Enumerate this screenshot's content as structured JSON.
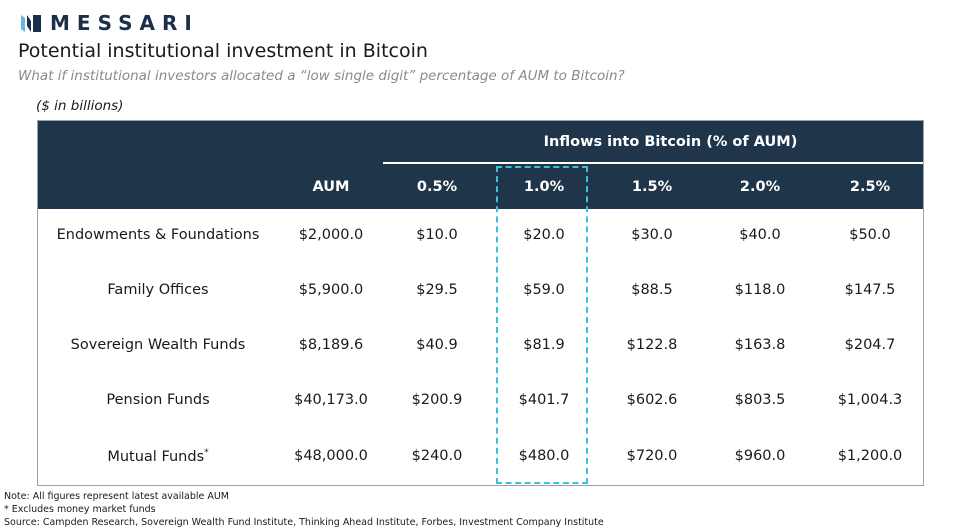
{
  "brand": {
    "name": "MESSARI",
    "logo_icon": "messari-logo-icon"
  },
  "title": "Potential institutional investment in Bitcoin",
  "subtitle": "What if institutional investors allocated a “low single digit” percentage of AUM to Bitcoin?",
  "units": "($ in billions)",
  "colors": {
    "header_bg": "#1f3549",
    "highlight": "#3ec0dc",
    "brand": "#1b2e4a"
  },
  "notes": [
    "Note: All figures represent latest available AUM",
    "* Excludes money market funds",
    "Source: Campden Research, Sovereign Wealth Fund Institute, Thinking Ahead Institute, Forbes, Investment Company Institute"
  ],
  "chart_data": {
    "type": "table",
    "group_header": "Inflows into Bitcoin (% of AUM)",
    "columns": [
      "AUM",
      "0.5%",
      "1.0%",
      "1.5%",
      "2.0%",
      "2.5%"
    ],
    "highlighted_column": "1.0%",
    "rows": [
      {
        "label": "Endowments & Foundations",
        "footnote": "",
        "values": [
          "$2,000.0",
          "$10.0",
          "$20.0",
          "$30.0",
          "$40.0",
          "$50.0"
        ]
      },
      {
        "label": "Family Offices",
        "footnote": "",
        "values": [
          "$5,900.0",
          "$29.5",
          "$59.0",
          "$88.5",
          "$118.0",
          "$147.5"
        ]
      },
      {
        "label": "Sovereign Wealth Funds",
        "footnote": "",
        "values": [
          "$8,189.6",
          "$40.9",
          "$81.9",
          "$122.8",
          "$163.8",
          "$204.7"
        ]
      },
      {
        "label": "Pension Funds",
        "footnote": "",
        "values": [
          "$40,173.0",
          "$200.9",
          "$401.7",
          "$602.6",
          "$803.5",
          "$1,004.3"
        ]
      },
      {
        "label": "Mutual Funds",
        "footnote": "*",
        "values": [
          "$48,000.0",
          "$240.0",
          "$480.0",
          "$720.0",
          "$960.0",
          "$1,200.0"
        ]
      }
    ]
  }
}
